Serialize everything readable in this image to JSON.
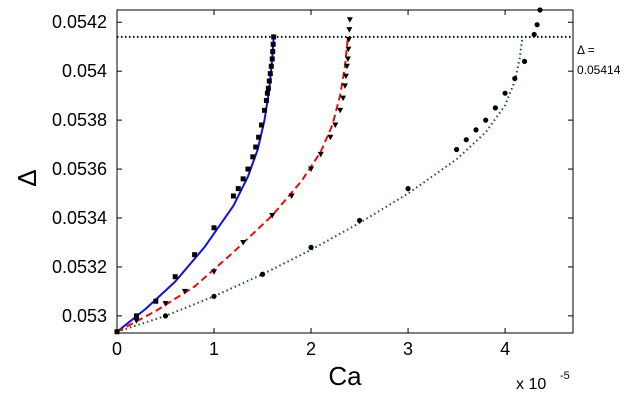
{
  "chart_data": {
    "type": "scatter",
    "xlabel": "Ca",
    "ylabel": "Δ",
    "x_multiplier": {
      "base": "x 10",
      "exponent": "-5"
    },
    "xlim": [
      0,
      4.7
    ],
    "ylim": [
      0.05293,
      0.05425
    ],
    "x_ticks": [
      0,
      1,
      2,
      3,
      4
    ],
    "x_tick_labels": [
      "0",
      "1",
      "2",
      "3",
      "4"
    ],
    "y_ticks": [
      0.053,
      0.0532,
      0.0534,
      0.0536,
      0.0538,
      0.054,
      0.0542
    ],
    "y_tick_labels": [
      "0.053",
      "0.0532",
      "0.0534",
      "0.0536",
      "0.0538",
      "0.054",
      "0.0542"
    ],
    "grid": false,
    "reference_line": {
      "y": 0.05414,
      "label_line1": "Δ =",
      "label_line2": "0.05414",
      "style": "dotted",
      "color": "#000000"
    },
    "series": [
      {
        "marker": "square",
        "color": "#000000",
        "points": [
          [
            0,
            0.052935
          ],
          [
            0.2,
            0.053
          ],
          [
            0.4,
            0.05306
          ],
          [
            0.6,
            0.05316
          ],
          [
            0.8,
            0.05325
          ],
          [
            1.0,
            0.05336
          ],
          [
            1.2,
            0.05349
          ],
          [
            1.25,
            0.05352
          ],
          [
            1.3,
            0.05356
          ],
          [
            1.35,
            0.0536
          ],
          [
            1.4,
            0.05365
          ],
          [
            1.43,
            0.05369
          ],
          [
            1.46,
            0.05373
          ],
          [
            1.49,
            0.05378
          ],
          [
            1.52,
            0.05384
          ],
          [
            1.54,
            0.05388
          ],
          [
            1.55,
            0.05391
          ],
          [
            1.56,
            0.05393
          ],
          [
            1.57,
            0.05396
          ],
          [
            1.58,
            0.05399
          ],
          [
            1.59,
            0.05402
          ],
          [
            1.6,
            0.05405
          ],
          [
            1.605,
            0.05408
          ],
          [
            1.61,
            0.05411
          ],
          [
            1.615,
            0.05414
          ]
        ]
      },
      {
        "marker": "triangle-down",
        "color": "#000000",
        "points": [
          [
            0.2,
            0.05298
          ],
          [
            0.5,
            0.05305
          ],
          [
            0.7,
            0.0531
          ],
          [
            1.0,
            0.05318
          ],
          [
            1.3,
            0.0533
          ],
          [
            1.6,
            0.05341
          ],
          [
            1.8,
            0.05349
          ],
          [
            2.0,
            0.0536
          ],
          [
            2.1,
            0.05366
          ],
          [
            2.2,
            0.05373
          ],
          [
            2.25,
            0.05378
          ],
          [
            2.3,
            0.05384
          ],
          [
            2.33,
            0.05389
          ],
          [
            2.35,
            0.05394
          ],
          [
            2.36,
            0.05398
          ],
          [
            2.37,
            0.05402
          ],
          [
            2.38,
            0.05405
          ],
          [
            2.385,
            0.05409
          ],
          [
            2.39,
            0.05413
          ],
          [
            2.395,
            0.05417
          ],
          [
            2.4,
            0.05421
          ]
        ]
      },
      {
        "marker": "circle",
        "color": "#000000",
        "points": [
          [
            0.5,
            0.053
          ],
          [
            1.0,
            0.05308
          ],
          [
            1.5,
            0.05317
          ],
          [
            2.0,
            0.05328
          ],
          [
            2.5,
            0.05339
          ],
          [
            3.0,
            0.05352
          ],
          [
            3.5,
            0.05368
          ],
          [
            3.6,
            0.05372
          ],
          [
            3.7,
            0.05376
          ],
          [
            3.8,
            0.0538
          ],
          [
            3.9,
            0.05385
          ],
          [
            4.0,
            0.05391
          ],
          [
            4.1,
            0.05397
          ],
          [
            4.2,
            0.05404
          ],
          [
            4.3,
            0.05415
          ],
          [
            4.33,
            0.05419
          ],
          [
            4.36,
            0.05425
          ]
        ]
      },
      {
        "style": "solid-line",
        "color": "#1010e0",
        "points": [
          [
            0,
            0.052935
          ],
          [
            0.3,
            0.05303
          ],
          [
            0.6,
            0.05314
          ],
          [
            0.9,
            0.05328
          ],
          [
            1.2,
            0.05345
          ],
          [
            1.35,
            0.05357
          ],
          [
            1.45,
            0.05368
          ],
          [
            1.52,
            0.0538
          ],
          [
            1.57,
            0.05393
          ],
          [
            1.6,
            0.05405
          ],
          [
            1.615,
            0.05414
          ]
        ]
      },
      {
        "style": "dashed-line",
        "color": "#e01010",
        "points": [
          [
            0,
            0.052935
          ],
          [
            0.4,
            0.05302
          ],
          [
            0.8,
            0.05312
          ],
          [
            1.2,
            0.05326
          ],
          [
            1.6,
            0.05341
          ],
          [
            1.9,
            0.05355
          ],
          [
            2.1,
            0.05367
          ],
          [
            2.22,
            0.05378
          ],
          [
            2.3,
            0.0539
          ],
          [
            2.35,
            0.05402
          ],
          [
            2.37,
            0.0541
          ],
          [
            2.38,
            0.05414
          ]
        ]
      },
      {
        "style": "dotted-line",
        "color": "#1a5a1a",
        "points": [
          [
            0,
            0.052935
          ],
          [
            0.5,
            0.053
          ],
          [
            1.0,
            0.05308
          ],
          [
            1.5,
            0.05317
          ],
          [
            2.0,
            0.05327
          ],
          [
            2.5,
            0.05338
          ],
          [
            3.0,
            0.0535
          ],
          [
            3.5,
            0.05364
          ],
          [
            3.8,
            0.05375
          ],
          [
            4.0,
            0.05386
          ],
          [
            4.1,
            0.05396
          ],
          [
            4.15,
            0.05405
          ],
          [
            4.18,
            0.05414
          ]
        ]
      }
    ]
  }
}
